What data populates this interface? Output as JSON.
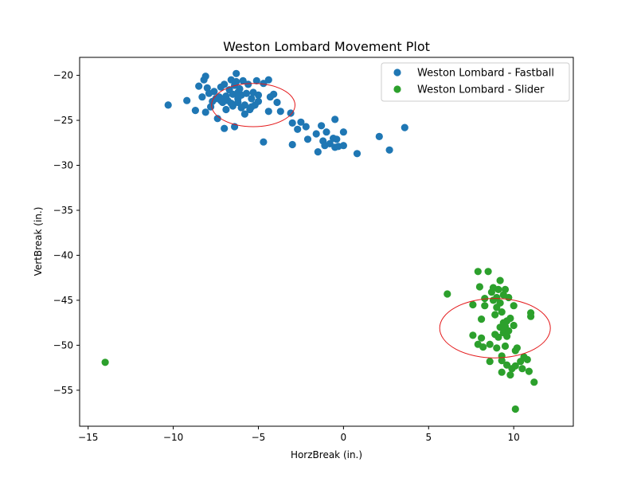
{
  "chart_data": {
    "type": "scatter",
    "title": "Weston Lombard Movement Plot",
    "xlabel": "HorzBreak (in.)",
    "ylabel": "VertBreak (in.)",
    "xlim": [
      -15.5,
      13.5
    ],
    "ylim": [
      -59,
      -18
    ],
    "xticks": [
      -15,
      -10,
      -5,
      0,
      5,
      10
    ],
    "yticks": [
      -20,
      -25,
      -30,
      -35,
      -40,
      -45,
      -50,
      -55
    ],
    "grid": false,
    "legend_position": "top-right",
    "series": [
      {
        "name": "Weston Lombard - Fastball",
        "color": "#1f77b4",
        "points": [
          [
            -10.3,
            -23.3
          ],
          [
            -9.2,
            -22.8
          ],
          [
            -8.7,
            -23.9
          ],
          [
            -8.5,
            -21.2
          ],
          [
            -8.3,
            -22.4
          ],
          [
            -8.2,
            -20.5
          ],
          [
            -8.1,
            -20.1
          ],
          [
            -8.0,
            -21.4
          ],
          [
            -7.9,
            -22.0
          ],
          [
            -7.8,
            -23.5
          ],
          [
            -7.6,
            -21.8
          ],
          [
            -7.5,
            -22.6
          ],
          [
            -7.4,
            -24.8
          ],
          [
            -7.3,
            -22.4
          ],
          [
            -7.2,
            -21.3
          ],
          [
            -7.1,
            -23.0
          ],
          [
            -7.0,
            -21.0
          ],
          [
            -6.9,
            -22.3
          ],
          [
            -6.8,
            -22.8
          ],
          [
            -6.7,
            -21.6
          ],
          [
            -6.6,
            -20.5
          ],
          [
            -6.5,
            -22.1
          ],
          [
            -6.5,
            -23.4
          ],
          [
            -6.4,
            -21.1
          ],
          [
            -6.3,
            -20.7
          ],
          [
            -6.2,
            -22.6
          ],
          [
            -6.2,
            -23.0
          ],
          [
            -6.1,
            -21.5
          ],
          [
            -6.0,
            -22.2
          ],
          [
            -5.9,
            -20.6
          ],
          [
            -5.8,
            -23.3
          ],
          [
            -5.8,
            -24.3
          ],
          [
            -5.7,
            -22.0
          ],
          [
            -5.6,
            -21.0
          ],
          [
            -5.5,
            -23.8
          ],
          [
            -5.4,
            -22.6
          ],
          [
            -5.3,
            -21.9
          ],
          [
            -5.2,
            -23.3
          ],
          [
            -5.1,
            -20.6
          ],
          [
            -5.0,
            -22.9
          ],
          [
            -6.3,
            -19.8
          ],
          [
            -6.4,
            -25.7
          ],
          [
            -7.0,
            -25.9
          ],
          [
            -8.1,
            -24.1
          ],
          [
            -4.7,
            -20.9
          ],
          [
            -4.4,
            -20.5
          ],
          [
            -4.3,
            -22.4
          ],
          [
            -4.1,
            -22.1
          ],
          [
            -3.9,
            -23.0
          ],
          [
            -3.7,
            -24.0
          ],
          [
            -4.4,
            -24.0
          ],
          [
            -4.7,
            -27.4
          ],
          [
            -3.1,
            -24.2
          ],
          [
            -3.0,
            -25.3
          ],
          [
            -3.0,
            -27.7
          ],
          [
            -2.7,
            -26.0
          ],
          [
            -2.5,
            -25.2
          ],
          [
            -2.2,
            -25.7
          ],
          [
            -2.1,
            -27.1
          ],
          [
            -1.6,
            -26.5
          ],
          [
            -1.5,
            -28.5
          ],
          [
            -1.3,
            -25.6
          ],
          [
            -1.2,
            -27.3
          ],
          [
            -1.1,
            -27.8
          ],
          [
            -1.0,
            -26.3
          ],
          [
            -0.8,
            -27.6
          ],
          [
            -0.6,
            -27.0
          ],
          [
            -0.5,
            -28.0
          ],
          [
            -0.5,
            -24.9
          ],
          [
            -0.4,
            -27.1
          ],
          [
            -0.3,
            -27.9
          ],
          [
            0.0,
            -26.3
          ],
          [
            0.0,
            -27.8
          ],
          [
            0.8,
            -28.7
          ],
          [
            2.1,
            -26.8
          ],
          [
            2.7,
            -28.3
          ],
          [
            3.6,
            -25.8
          ],
          [
            -6.9,
            -23.8
          ],
          [
            -6.0,
            -23.6
          ],
          [
            -5.4,
            -23.5
          ],
          [
            -7.7,
            -22.9
          ],
          [
            -6.6,
            -23.1
          ],
          [
            -5.0,
            -22.2
          ],
          [
            -7.2,
            -22.8
          ],
          [
            -6.2,
            -21.9
          ]
        ]
      },
      {
        "name": "Weston Lombard - Slider",
        "color": "#2ca02c",
        "points": [
          [
            -14.0,
            -51.9
          ],
          [
            6.1,
            -44.3
          ],
          [
            7.6,
            -45.5
          ],
          [
            7.6,
            -48.9
          ],
          [
            7.9,
            -49.9
          ],
          [
            7.9,
            -41.8
          ],
          [
            8.0,
            -43.5
          ],
          [
            8.1,
            -49.2
          ],
          [
            8.1,
            -47.1
          ],
          [
            8.2,
            -50.2
          ],
          [
            8.3,
            -45.6
          ],
          [
            8.3,
            -44.8
          ],
          [
            8.5,
            -41.8
          ],
          [
            8.6,
            -49.9
          ],
          [
            8.6,
            -51.8
          ],
          [
            8.7,
            -44.1
          ],
          [
            8.8,
            -43.6
          ],
          [
            8.9,
            -46.6
          ],
          [
            8.9,
            -48.8
          ],
          [
            9.0,
            -45.8
          ],
          [
            9.0,
            -44.7
          ],
          [
            9.1,
            -49.1
          ],
          [
            9.1,
            -43.8
          ],
          [
            9.2,
            -42.8
          ],
          [
            9.2,
            -45.3
          ],
          [
            9.2,
            -48.0
          ],
          [
            9.3,
            -46.3
          ],
          [
            9.3,
            -51.7
          ],
          [
            9.3,
            -53.0
          ],
          [
            9.4,
            -47.5
          ],
          [
            9.4,
            -44.4
          ],
          [
            9.4,
            -48.6
          ],
          [
            9.5,
            -50.1
          ],
          [
            9.5,
            -47.9
          ],
          [
            9.5,
            -43.8
          ],
          [
            9.6,
            -52.2
          ],
          [
            9.6,
            -47.3
          ],
          [
            9.7,
            -44.7
          ],
          [
            9.7,
            -48.4
          ],
          [
            9.8,
            -53.3
          ],
          [
            9.8,
            -47.0
          ],
          [
            9.9,
            -52.6
          ],
          [
            10.0,
            -47.8
          ],
          [
            10.0,
            -45.6
          ],
          [
            10.1,
            -50.6
          ],
          [
            10.1,
            -52.3
          ],
          [
            10.1,
            -57.1
          ],
          [
            10.2,
            -50.3
          ],
          [
            10.4,
            -51.8
          ],
          [
            10.5,
            -52.6
          ],
          [
            10.6,
            -51.3
          ],
          [
            10.8,
            -51.6
          ],
          [
            10.9,
            -52.9
          ],
          [
            11.0,
            -46.8
          ],
          [
            11.0,
            -46.4
          ],
          [
            11.2,
            -54.1
          ],
          [
            9.0,
            -50.3
          ],
          [
            8.8,
            -45.0
          ],
          [
            9.6,
            -49.0
          ],
          [
            9.3,
            -51.2
          ]
        ]
      }
    ],
    "annotations": [
      {
        "type": "ellipse",
        "color": "#e41a1c",
        "center": [
          -5.3,
          -23.3
        ],
        "rx": 2.45,
        "ry": 2.4
      },
      {
        "type": "ellipse",
        "color": "#e41a1c",
        "center": [
          8.9,
          -48.1
        ],
        "rx": 3.25,
        "ry": 3.3
      }
    ]
  }
}
